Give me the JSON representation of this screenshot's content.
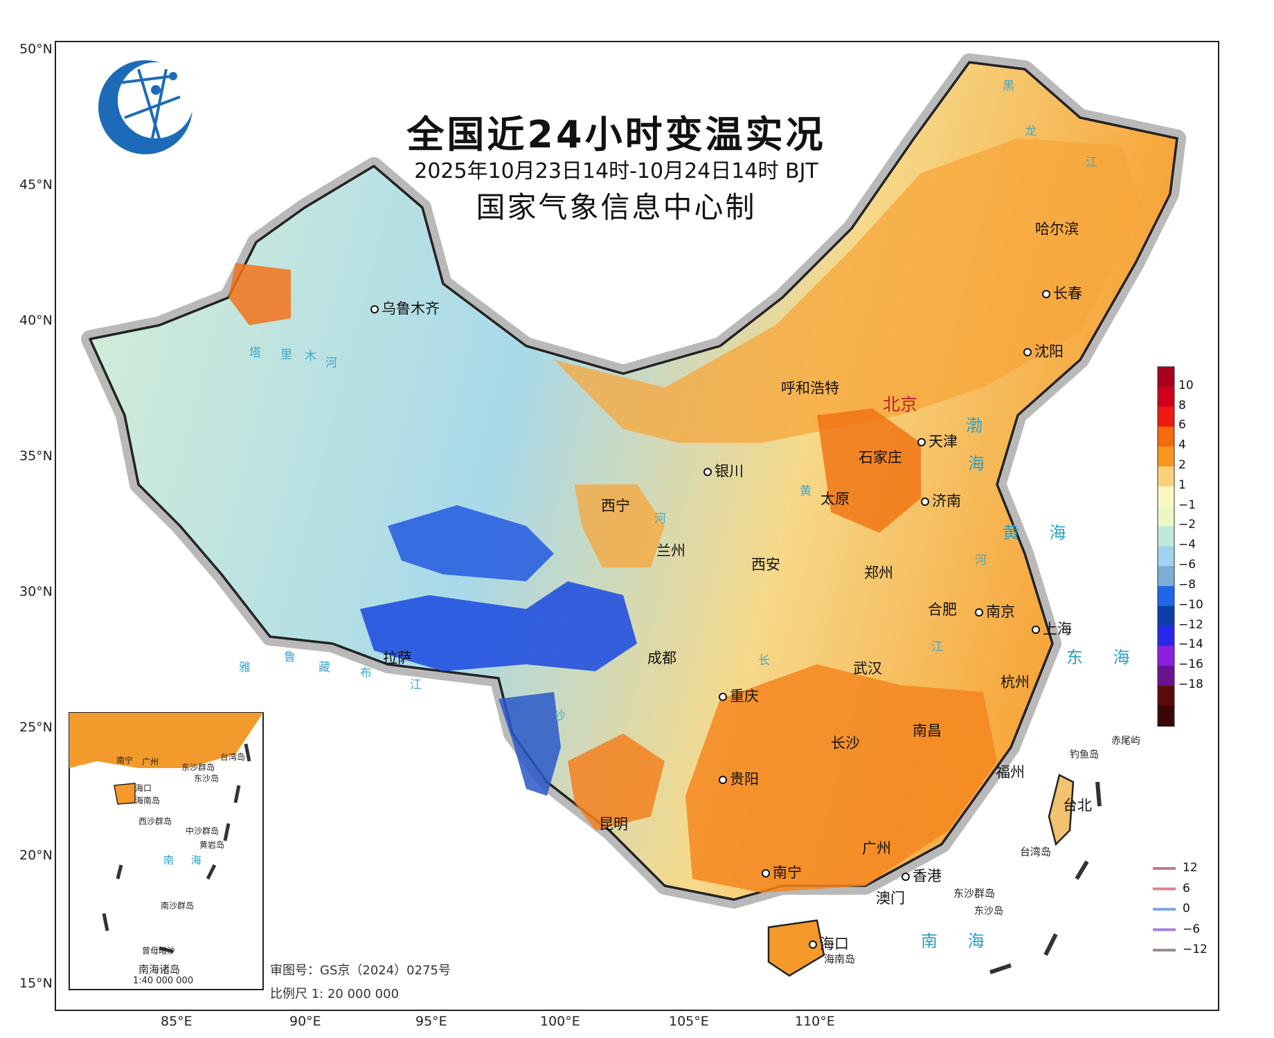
{
  "title": {
    "main": "全国近24小时变温实况",
    "sub": "2025年10月23日14时-10月24日14时 BJT",
    "org": "国家气象信息中心制"
  },
  "axes": {
    "lat_labels": [
      "50°N",
      "45°N",
      "40°N",
      "35°N",
      "30°N",
      "25°N",
      "20°N",
      "15°N"
    ],
    "lon_labels": [
      "85°E",
      "90°E",
      "95°E",
      "100°E",
      "105°E",
      "110°E"
    ]
  },
  "cities": [
    {
      "name": "乌鲁木齐"
    },
    {
      "name": "哈尔滨"
    },
    {
      "name": "长春"
    },
    {
      "name": "沈阳"
    },
    {
      "name": "呼和浩特"
    },
    {
      "name": "北京"
    },
    {
      "name": "天津"
    },
    {
      "name": "石家庄"
    },
    {
      "name": "银川"
    },
    {
      "name": "太原"
    },
    {
      "name": "济南"
    },
    {
      "name": "西宁"
    },
    {
      "name": "兰州"
    },
    {
      "name": "西安"
    },
    {
      "name": "郑州"
    },
    {
      "name": "合肥"
    },
    {
      "name": "南京"
    },
    {
      "name": "上海"
    },
    {
      "name": "拉萨"
    },
    {
      "name": "成都"
    },
    {
      "name": "武汉"
    },
    {
      "name": "杭州"
    },
    {
      "name": "重庆"
    },
    {
      "name": "南昌"
    },
    {
      "name": "长沙"
    },
    {
      "name": "福州"
    },
    {
      "name": "贵阳"
    },
    {
      "name": "台北"
    },
    {
      "name": "昆明"
    },
    {
      "name": "广州"
    },
    {
      "name": "南宁"
    },
    {
      "name": "香港"
    },
    {
      "name": "澳门"
    },
    {
      "name": "海口"
    }
  ],
  "islands": [
    "钓鱼岛",
    "赤尾屿",
    "台湾岛",
    "东沙群岛",
    "东沙岛",
    "海南岛"
  ],
  "seas": [
    "渤",
    "海",
    "黄 海",
    "东 海",
    "南 海"
  ],
  "rivers": [
    "黑",
    "龙",
    "江",
    "塔",
    "里",
    "木",
    "河",
    "黄",
    "河",
    "长",
    "江",
    "雅",
    "鲁",
    "藏",
    "布",
    "江",
    "沙",
    "河"
  ],
  "legend_fill": {
    "labels": [
      "10",
      "8",
      "6",
      "4",
      "2",
      "1",
      "−1",
      "−2",
      "−4",
      "−6",
      "−8",
      "−10",
      "−12",
      "−14",
      "−16",
      "−18"
    ],
    "colors": [
      "#a8001e",
      "#d0001c",
      "#ee1a12",
      "#f46a0c",
      "#f99620",
      "#fcd07a",
      "#fbf7c0",
      "#e9f8c4",
      "#bfe9d8",
      "#9fd3ee",
      "#7caed6",
      "#1f67e6",
      "#0b3ea8",
      "#2a28e8",
      "#8e1ee0",
      "#6a1390",
      "#5a0b0b",
      "#3a0606"
    ]
  },
  "legend_line": {
    "labels": [
      "12",
      "6",
      "0",
      "−6",
      "−12"
    ],
    "colors": [
      "#c07890",
      "#e08080",
      "#7fa8df",
      "#a680d8",
      "#a08c8c"
    ]
  },
  "inset": {
    "title": "南海诸岛",
    "scale": "1:40 000 000",
    "labels": [
      "南宁",
      "广州",
      "台湾岛",
      "东沙群岛",
      "东沙岛",
      "海口",
      "海南岛",
      "西沙群岛",
      "中沙群岛",
      "黄岩岛",
      "南 海",
      "南沙群岛",
      "曾母暗沙"
    ]
  },
  "footer": {
    "approval": "审图号：GS京（2024）0275号",
    "scale": "比例尺  1: 20 000 000"
  },
  "colors": {
    "frame": "#222222",
    "title": "#111111"
  }
}
